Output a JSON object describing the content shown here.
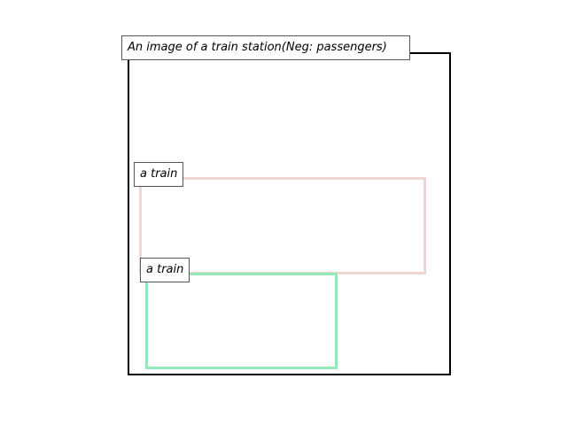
{
  "title": "An image of a train station(Neg: passengers)",
  "regions": [
    {
      "label": "a train",
      "color": "#f0d6d0"
    },
    {
      "label": "a train",
      "color": "#93e9b8"
    }
  ],
  "frame_color": "#000000"
}
